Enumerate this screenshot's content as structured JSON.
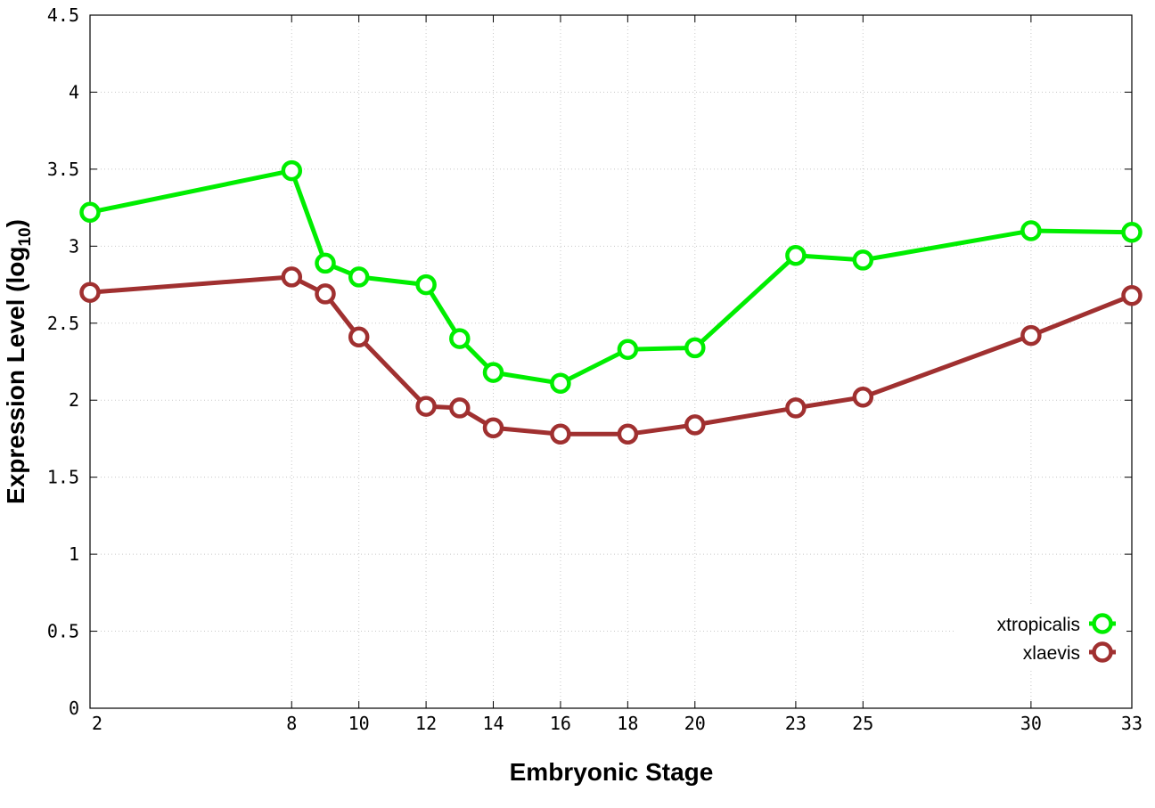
{
  "chart_data": {
    "type": "line",
    "xlabel": "Embryonic Stage",
    "ylabel_main": "Expression Level (log",
    "ylabel_sub": "10",
    "ylabel_close": ")",
    "x_ticks": [
      2,
      8,
      10,
      12,
      14,
      16,
      18,
      20,
      23,
      25,
      30,
      33
    ],
    "y_ticks": [
      "0",
      "0.5",
      "1",
      "1.5",
      "2",
      "2.5",
      "3",
      "3.5",
      "4",
      "4.5"
    ],
    "xlim": [
      2,
      33
    ],
    "ylim": [
      0,
      4.5
    ],
    "grid": true,
    "legend_position": "bottom-right",
    "x": [
      2,
      8,
      9,
      10,
      12,
      13,
      14,
      16,
      18,
      20,
      23,
      25,
      30,
      33
    ],
    "series": [
      {
        "name": "xtropicalis",
        "color": "#00ee00",
        "values": [
          3.22,
          3.49,
          2.89,
          2.8,
          2.75,
          2.4,
          2.18,
          2.11,
          2.33,
          2.34,
          2.94,
          2.91,
          3.1,
          3.09
        ]
      },
      {
        "name": "xlaevis",
        "color": "#a03030",
        "values": [
          2.7,
          2.8,
          2.69,
          2.41,
          1.96,
          1.95,
          1.82,
          1.78,
          1.78,
          1.84,
          1.95,
          2.02,
          2.42,
          2.68
        ]
      }
    ]
  }
}
